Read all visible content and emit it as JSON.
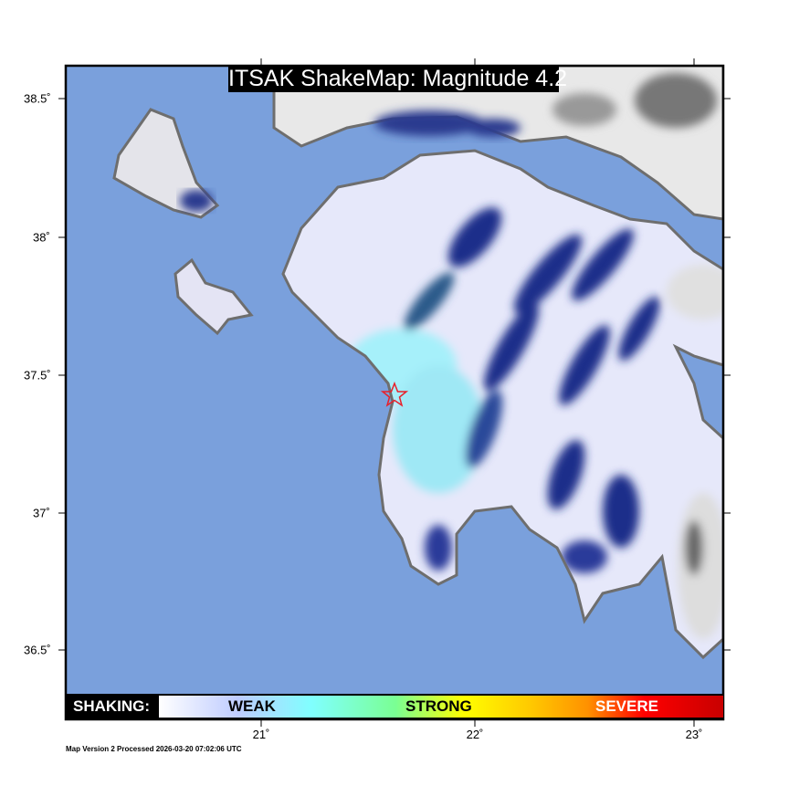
{
  "title": "ITSAK ShakeMap: Magnitude 4.2",
  "legend": {
    "label": "SHAKING:",
    "weak": "WEAK",
    "strong": "STRONG",
    "severe": "SEVERE"
  },
  "x_ticks": [
    "21˚",
    "22˚",
    "23˚"
  ],
  "y_ticks": [
    "38.5˚",
    "38˚",
    "37.5˚",
    "37˚",
    "36.5˚"
  ],
  "footer": "Map Version 2 Processed 2026-03-20 07:02:06 UTC",
  "epicenter": {
    "lon": 21.62,
    "lat": 37.43,
    "marker": "star-icon",
    "color": "#e8202a"
  },
  "colors": {
    "sea": "#7aa0dc",
    "coast": "#6e6e6e"
  }
}
